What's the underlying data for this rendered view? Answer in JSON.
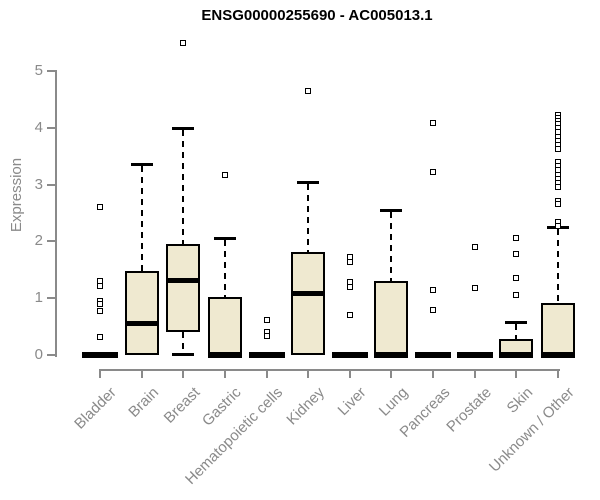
{
  "chart_data": {
    "type": "boxplot",
    "title": "ENSG00000255690 - AC005013.1",
    "ylabel": "Expression",
    "xlabel": "",
    "ylim": [
      0,
      5
    ],
    "yticks": [
      0,
      1,
      2,
      3,
      4,
      5
    ],
    "grid": false,
    "legend": "none",
    "categories": [
      "Bladder",
      "Brain",
      "Breast",
      "Gastric",
      "Hematopoietic cells",
      "Kidney",
      "Liver",
      "Lung",
      "Pancreas",
      "Prostate",
      "Skin",
      "Unknown / Other"
    ],
    "boxes": [
      {
        "category": "Bladder",
        "q1": 0,
        "median": 0,
        "q3": 0,
        "whisker_low": 0,
        "whisker_high": 0,
        "outliers": [
          2.6,
          1.3,
          1.21,
          0.95,
          0.9,
          0.78,
          0.32
        ]
      },
      {
        "category": "Brain",
        "q1": 0,
        "median": 0.55,
        "q3": 1.48,
        "whisker_low": 0,
        "whisker_high": 3.37,
        "outliers": []
      },
      {
        "category": "Breast",
        "q1": 0.41,
        "median": 1.32,
        "q3": 1.95,
        "whisker_low": 0.02,
        "whisker_high": 4.0,
        "outliers": [
          5.5
        ]
      },
      {
        "category": "Gastric",
        "q1": 0,
        "median": 0,
        "q3": 1.02,
        "whisker_low": 0,
        "whisker_high": 2.06,
        "outliers": [
          3.17
        ]
      },
      {
        "category": "Hematopoietic cells",
        "q1": 0,
        "median": 0,
        "q3": 0,
        "whisker_low": 0,
        "whisker_high": 0,
        "outliers": [
          0.62,
          0.41,
          0.34
        ]
      },
      {
        "category": "Kidney",
        "q1": 0,
        "median": 1.09,
        "q3": 1.81,
        "whisker_low": 0,
        "whisker_high": 3.05,
        "outliers": [
          4.65
        ]
      },
      {
        "category": "Liver",
        "q1": 0,
        "median": 0,
        "q3": 0,
        "whisker_low": 0,
        "whisker_high": 0,
        "outliers": [
          1.72,
          1.64,
          1.28,
          1.2,
          0.7
        ]
      },
      {
        "category": "Lung",
        "q1": 0,
        "median": 0,
        "q3": 1.31,
        "whisker_low": 0,
        "whisker_high": 2.56,
        "outliers": []
      },
      {
        "category": "Pancreas",
        "q1": 0,
        "median": 0,
        "q3": 0,
        "whisker_low": 0,
        "whisker_high": 0,
        "outliers": [
          4.08,
          3.23,
          1.15,
          0.79
        ]
      },
      {
        "category": "Prostate",
        "q1": 0,
        "median": 0,
        "q3": 0,
        "whisker_low": 0,
        "whisker_high": 0,
        "outliers": [
          1.9,
          1.18
        ]
      },
      {
        "category": "Skin",
        "q1": 0,
        "median": 0,
        "q3": 0.29,
        "whisker_low": 0,
        "whisker_high": 0.58,
        "outliers": [
          2.06,
          1.78,
          1.36,
          1.06
        ]
      },
      {
        "category": "Unknown / Other",
        "q1": 0,
        "median": 0,
        "q3": 0.92,
        "whisker_low": 0,
        "whisker_high": 2.26,
        "outliers": [
          4.23,
          4.18,
          4.12,
          4.06,
          3.99,
          3.93,
          3.84,
          3.77,
          3.7,
          3.63,
          3.4,
          3.32,
          3.25,
          3.17,
          3.1,
          3.03,
          2.96,
          2.72,
          2.65,
          2.35,
          2.27
        ]
      }
    ],
    "colors": {
      "box_fill": "#efe9d0",
      "box_border": "#000000",
      "median": "#000000",
      "whisker": "#000000",
      "axis": "#8a8a8a",
      "title_text": "#000000",
      "background": "#ffffff"
    }
  }
}
